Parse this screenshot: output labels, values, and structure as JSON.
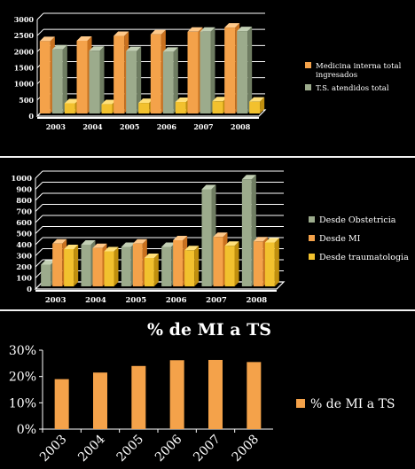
{
  "colors": {
    "orange": "#f4a24a",
    "orange_dark": "#c9711f",
    "orange_top": "#ffc98a",
    "green": "#9cab8c",
    "green_dark": "#6f7d62",
    "green_top": "#c2cfb4",
    "gold": "#f2c12e",
    "gold_dark": "#c08f0e",
    "gold_top": "#ffe07a"
  },
  "chart_data": [
    {
      "type": "bar",
      "categories": [
        "2003",
        "2004",
        "2005",
        "2006",
        "2007",
        "2008"
      ],
      "ylim": [
        0,
        3000
      ],
      "yticks": [
        "0",
        "500",
        "1000",
        "1500",
        "2000",
        "2500",
        "3000"
      ],
      "series": [
        {
          "name": "Medicina interna total ingresados",
          "values": [
            2330,
            2340,
            2490,
            2540,
            2620,
            2750
          ],
          "color": "orange"
        },
        {
          "name": "T.S. atendidos total",
          "values": [
            2070,
            2030,
            2020,
            2000,
            2620,
            2640
          ],
          "color": "green"
        },
        {
          "name": "",
          "values": [
            400,
            370,
            410,
            440,
            460,
            450
          ],
          "color": "gold"
        }
      ],
      "legend": [
        "Medicina interna total ingresados",
        "T.S. atendidos total"
      ],
      "legend_position": "right",
      "grid": true
    },
    {
      "type": "bar",
      "categories": [
        "2003",
        "2004",
        "2005",
        "2006",
        "2007",
        "2008"
      ],
      "ylim": [
        0,
        1000
      ],
      "yticks": [
        "0",
        "100",
        "200",
        "300",
        "400",
        "500",
        "600",
        "700",
        "800",
        "900",
        "1000"
      ],
      "series": [
        {
          "name": "Desde Obstetricia",
          "values": [
            220,
            400,
            380,
            380,
            900,
            990
          ],
          "color": "green"
        },
        {
          "name": "Desde MI",
          "values": [
            410,
            370,
            410,
            440,
            470,
            430
          ],
          "color": "orange"
        },
        {
          "name": "Desde traumatologia",
          "values": [
            360,
            340,
            280,
            350,
            390,
            420
          ],
          "color": "gold"
        }
      ],
      "legend": [
        "Desde Obstetricia",
        "Desde MI",
        "Desde traumatologia"
      ],
      "legend_position": "right",
      "grid": true
    },
    {
      "type": "bar",
      "title": "% de MI a TS",
      "categories": [
        "2003",
        "2004",
        "2005",
        "2006",
        "2007",
        "2008"
      ],
      "ylim": [
        0,
        0.3
      ],
      "yticks": [
        "0%",
        "10%",
        "20%",
        "30%"
      ],
      "series": [
        {
          "name": "% de MI a TS",
          "values": [
            0.19,
            0.215,
            0.24,
            0.262,
            0.263,
            0.255
          ],
          "color": "orange"
        }
      ],
      "legend": [
        "% de MI a TS"
      ],
      "legend_position": "right",
      "grid": false
    }
  ]
}
